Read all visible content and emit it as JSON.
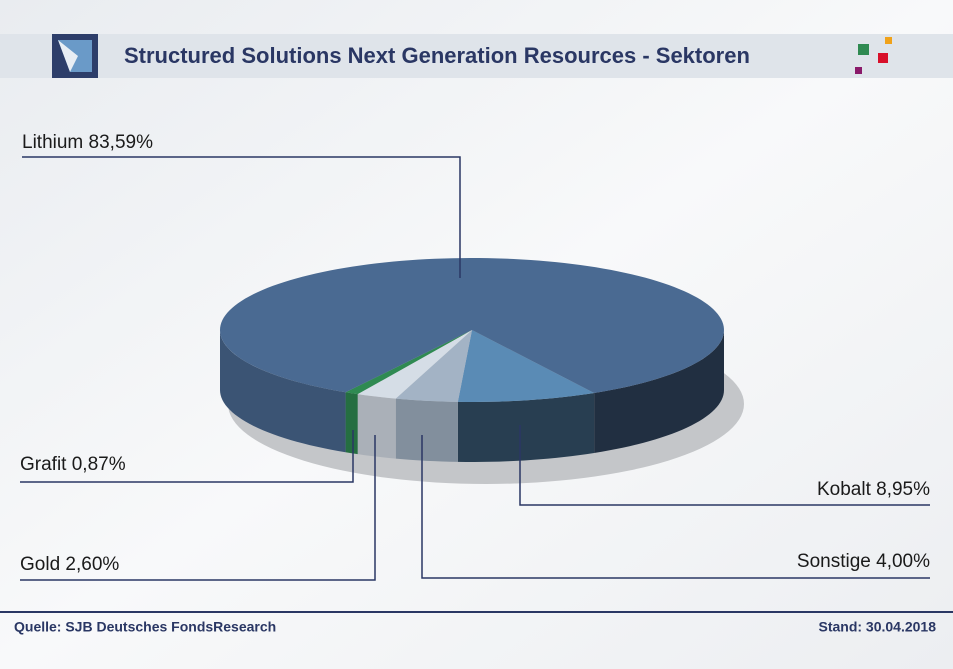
{
  "chart_data": {
    "type": "pie",
    "title": "Structured Solutions Next Generation Resources - Sektoren",
    "categories": [
      "Kobalt",
      "Sonstige",
      "Gold",
      "Grafit",
      "Lithium"
    ],
    "values": [
      8.95,
      4.0,
      2.6,
      0.87,
      83.59
    ],
    "value_labels": [
      "8,95%",
      "4,00%",
      "2,60%",
      "0,87%",
      "83,59%"
    ],
    "colors": [
      "#5a8bb5",
      "#a3b3c5",
      "#d5dde6",
      "#2f8a52",
      "#4a6a92"
    ],
    "source": "Quelle: SJB Deutsches FondsResearch",
    "date": "Stand: 30.04.2018"
  }
}
